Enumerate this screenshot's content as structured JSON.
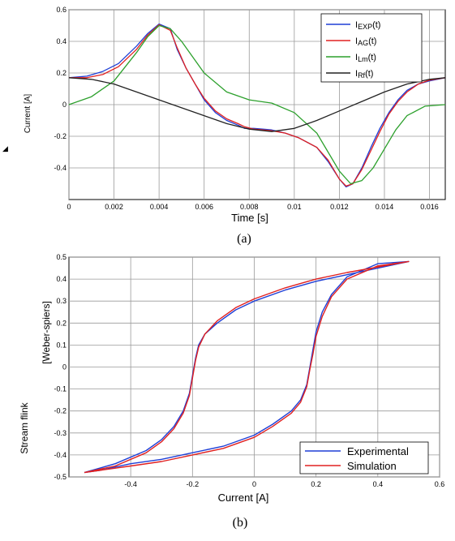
{
  "figure": {
    "caption_a": "(a)",
    "caption_b": "(b)",
    "marker": "◢"
  },
  "chart_data": [
    {
      "type": "line",
      "title": "",
      "xlabel": "Time [s]",
      "ylabel": "Current [A]",
      "xlim": [
        0,
        0.0167
      ],
      "ylim": [
        -0.6,
        0.6
      ],
      "xticks": [
        0,
        0.002,
        0.004,
        0.006,
        0.008,
        0.01,
        0.012,
        0.014,
        0.016
      ],
      "xtick_labels": [
        "0",
        "0.002",
        "0.004",
        "0.006",
        "0.008",
        "0.01",
        "0.012",
        "0.014",
        "0.016"
      ],
      "yticks": [
        -0.4,
        -0.2,
        0,
        0.2,
        0.4,
        0.6
      ],
      "ytick_labels": [
        "-0.4",
        "-0.2",
        "0",
        "0.2",
        "0.4",
        "0.6"
      ],
      "grid": true,
      "legend_position": "top-right",
      "series": [
        {
          "name": "IEXP(t)",
          "name_main": "I",
          "name_sub": "EXP",
          "name_suffix": "(t)",
          "color": "#1f3fd6",
          "x": [
            0,
            0.0008,
            0.0015,
            0.0022,
            0.003,
            0.0035,
            0.004,
            0.0045,
            0.0048,
            0.0052,
            0.0056,
            0.006,
            0.0065,
            0.007,
            0.0075,
            0.0078,
            0.0082,
            0.0086,
            0.009,
            0.0096,
            0.0102,
            0.011,
            0.0115,
            0.012,
            0.0123,
            0.0126,
            0.013,
            0.0134,
            0.0138,
            0.0142,
            0.0146,
            0.015,
            0.0155,
            0.016,
            0.0167
          ],
          "y": [
            0.17,
            0.18,
            0.21,
            0.26,
            0.37,
            0.45,
            0.51,
            0.48,
            0.35,
            0.23,
            0.13,
            0.03,
            -0.05,
            -0.1,
            -0.13,
            -0.15,
            -0.15,
            -0.155,
            -0.16,
            -0.18,
            -0.21,
            -0.27,
            -0.36,
            -0.47,
            -0.52,
            -0.5,
            -0.4,
            -0.27,
            -0.15,
            -0.05,
            0.03,
            0.09,
            0.13,
            0.15,
            0.17
          ]
        },
        {
          "name": "IAG(t)",
          "name_main": "I",
          "name_sub": "AG",
          "name_suffix": "(t)",
          "color": "#e02020",
          "x": [
            0,
            0.0008,
            0.0015,
            0.0022,
            0.003,
            0.0035,
            0.004,
            0.0045,
            0.0048,
            0.0052,
            0.0056,
            0.006,
            0.0065,
            0.007,
            0.0075,
            0.0078,
            0.0082,
            0.0086,
            0.009,
            0.0096,
            0.0102,
            0.011,
            0.0115,
            0.012,
            0.0123,
            0.0126,
            0.013,
            0.0134,
            0.0138,
            0.0142,
            0.0146,
            0.015,
            0.0155,
            0.016,
            0.0167
          ],
          "y": [
            0.17,
            0.17,
            0.19,
            0.24,
            0.35,
            0.44,
            0.505,
            0.47,
            0.36,
            0.23,
            0.13,
            0.04,
            -0.04,
            -0.09,
            -0.12,
            -0.14,
            -0.155,
            -0.16,
            -0.165,
            -0.18,
            -0.21,
            -0.27,
            -0.35,
            -0.47,
            -0.515,
            -0.5,
            -0.41,
            -0.29,
            -0.17,
            -0.06,
            0.02,
            0.08,
            0.13,
            0.155,
            0.17
          ]
        },
        {
          "name": "ILm(t)",
          "name_main": "I",
          "name_sub": "Lm",
          "name_suffix": "(t)",
          "color": "#2ca02c",
          "x": [
            0,
            0.001,
            0.002,
            0.003,
            0.0035,
            0.004,
            0.0045,
            0.005,
            0.0055,
            0.006,
            0.007,
            0.008,
            0.009,
            0.01,
            0.011,
            0.0115,
            0.012,
            0.0125,
            0.013,
            0.0135,
            0.014,
            0.0145,
            0.015,
            0.0158,
            0.0167
          ],
          "y": [
            0,
            0.05,
            0.15,
            0.33,
            0.43,
            0.5,
            0.48,
            0.4,
            0.3,
            0.2,
            0.08,
            0.03,
            0.01,
            -0.05,
            -0.18,
            -0.3,
            -0.42,
            -0.5,
            -0.48,
            -0.4,
            -0.28,
            -0.16,
            -0.07,
            -0.01,
            0
          ]
        },
        {
          "name": "IRf(t)",
          "name_main": "I",
          "name_sub": "Rf",
          "name_suffix": "(t)",
          "color": "#222222",
          "x": [
            0,
            0.001,
            0.002,
            0.003,
            0.004,
            0.005,
            0.006,
            0.007,
            0.008,
            0.009,
            0.01,
            0.011,
            0.012,
            0.013,
            0.014,
            0.015,
            0.016,
            0.0167
          ],
          "y": [
            0.17,
            0.16,
            0.13,
            0.08,
            0.03,
            -0.02,
            -0.07,
            -0.12,
            -0.155,
            -0.17,
            -0.15,
            -0.1,
            -0.04,
            0.02,
            0.08,
            0.13,
            0.16,
            0.17
          ]
        }
      ]
    },
    {
      "type": "line",
      "title": "",
      "xlabel": "Current [A]",
      "ylabel_left": "Stream  flink",
      "ylabel_right": "[Weber-spiers]",
      "xlim": [
        -0.6,
        0.6
      ],
      "ylim": [
        -0.5,
        0.5
      ],
      "xticks": [
        -0.4,
        -0.2,
        0,
        0.2,
        0.4,
        0.6
      ],
      "xtick_labels": [
        "-0.4",
        "-0.2",
        "0",
        "0.2",
        "0.4",
        "0.6"
      ],
      "yticks": [
        -0.5,
        -0.4,
        -0.3,
        -0.2,
        -0.1,
        0,
        0.1,
        0.2,
        0.3,
        0.4,
        0.5
      ],
      "ytick_labels": [
        "-0.5",
        "-0.4",
        "-0.3",
        "-0.2",
        "-0.1",
        "0",
        "0.1",
        "0.2",
        "0.3",
        "0.4",
        "0.5"
      ],
      "grid": true,
      "legend_position": "bottom-right",
      "series": [
        {
          "name": "Experimental",
          "color": "#1f3fd6",
          "x": [
            -0.55,
            -0.45,
            -0.35,
            -0.3,
            -0.26,
            -0.23,
            -0.21,
            -0.2,
            -0.19,
            -0.18,
            -0.16,
            -0.12,
            -0.06,
            0,
            0.1,
            0.2,
            0.3,
            0.4,
            0.5,
            0.4,
            0.3,
            0.25,
            0.22,
            0.2,
            0.19,
            0.18,
            0.17,
            0.15,
            0.12,
            0.06,
            0,
            -0.1,
            -0.2,
            -0.3,
            -0.4,
            -0.5,
            -0.55
          ],
          "y": [
            -0.48,
            -0.44,
            -0.38,
            -0.33,
            -0.27,
            -0.2,
            -0.12,
            -0.04,
            0.04,
            0.1,
            0.15,
            0.2,
            0.26,
            0.3,
            0.35,
            0.39,
            0.42,
            0.45,
            0.48,
            0.47,
            0.41,
            0.33,
            0.25,
            0.16,
            0.08,
            0,
            -0.08,
            -0.15,
            -0.2,
            -0.26,
            -0.31,
            -0.36,
            -0.39,
            -0.42,
            -0.44,
            -0.47,
            -0.48
          ]
        },
        {
          "name": "Simulation",
          "color": "#e02020",
          "x": [
            -0.55,
            -0.45,
            -0.35,
            -0.3,
            -0.26,
            -0.23,
            -0.21,
            -0.2,
            -0.19,
            -0.18,
            -0.16,
            -0.12,
            -0.06,
            0,
            0.1,
            0.2,
            0.3,
            0.4,
            0.5,
            0.4,
            0.3,
            0.25,
            0.22,
            0.2,
            0.19,
            0.18,
            0.17,
            0.15,
            0.12,
            0.06,
            0,
            -0.1,
            -0.2,
            -0.3,
            -0.4,
            -0.5,
            -0.55
          ],
          "y": [
            -0.48,
            -0.45,
            -0.39,
            -0.34,
            -0.28,
            -0.21,
            -0.13,
            -0.05,
            0.03,
            0.09,
            0.15,
            0.21,
            0.27,
            0.31,
            0.36,
            0.4,
            0.43,
            0.455,
            0.48,
            0.46,
            0.4,
            0.32,
            0.23,
            0.14,
            0.06,
            -0.01,
            -0.09,
            -0.16,
            -0.21,
            -0.27,
            -0.32,
            -0.37,
            -0.4,
            -0.43,
            -0.45,
            -0.47,
            -0.48
          ]
        }
      ]
    }
  ]
}
